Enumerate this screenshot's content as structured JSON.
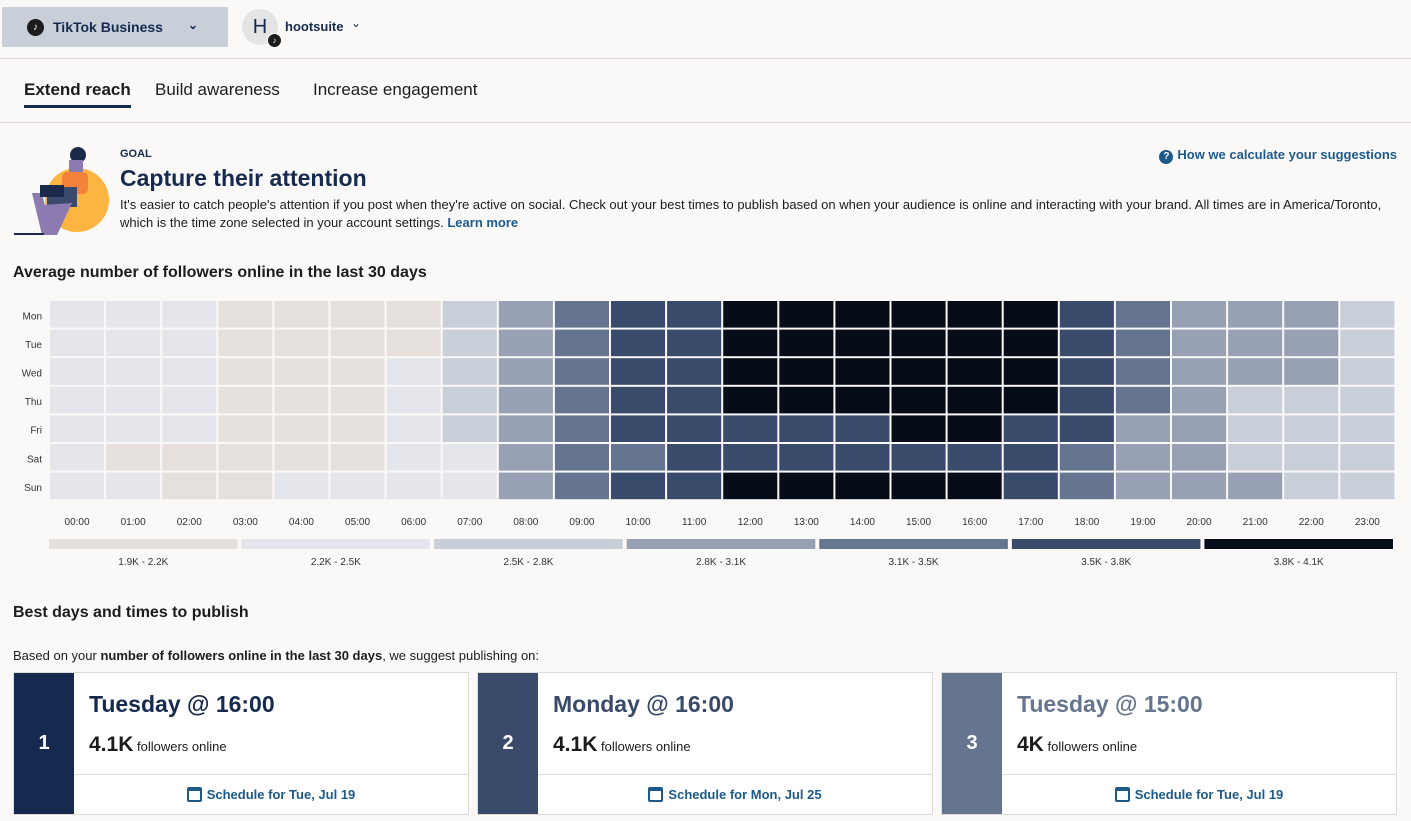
{
  "topbar": {
    "network": "TikTok Business",
    "profile_initial": "H",
    "profile": "hootsuite"
  },
  "tabs": [
    "Extend reach",
    "Build awareness",
    "Increase engagement"
  ],
  "goal": {
    "label": "GOAL",
    "title": "Capture their attention",
    "description": "It's easier to catch people's attention if you post when they're active on social. Check out your best times to publish based on when your audience is online and interacting with your brand. All times are in America/Toronto, which is the time zone selected in your account settings.",
    "learn_more": "Learn more",
    "help_link": "How we calculate your suggestions"
  },
  "heatmap_title": "Average number of followers online in the last 30 days",
  "chart_data": {
    "type": "heatmap",
    "title": "Average number of followers online in the last 30 days",
    "rows": [
      "Mon",
      "Tue",
      "Wed",
      "Thu",
      "Fri",
      "Sat",
      "Sun"
    ],
    "columns": [
      "00:00",
      "01:00",
      "02:00",
      "03:00",
      "04:00",
      "05:00",
      "06:00",
      "07:00",
      "08:00",
      "09:00",
      "10:00",
      "11:00",
      "12:00",
      "13:00",
      "14:00",
      "15:00",
      "16:00",
      "17:00",
      "18:00",
      "19:00",
      "20:00",
      "21:00",
      "22:00",
      "23:00"
    ],
    "bins": [
      {
        "label": "1.9K - 2.2K",
        "color": "#e5e0dc"
      },
      {
        "label": "2.2K - 2.5K",
        "color": "#e4e6eb"
      },
      {
        "label": "2.5K - 2.8K",
        "color": "#c9cfd9"
      },
      {
        "label": "2.8K - 3.1K",
        "color": "#97a1b3"
      },
      {
        "label": "3.1K - 3.5K",
        "color": "#66758f"
      },
      {
        "label": "3.5K - 3.8K",
        "color": "#3a4a6b"
      },
      {
        "label": "3.8K - 4.1K",
        "color": "#070d18"
      }
    ],
    "bin_index": [
      [
        1,
        1,
        1,
        0,
        0,
        0,
        0,
        2,
        3,
        4,
        5,
        5,
        6,
        6,
        6,
        6,
        6,
        6,
        5,
        4,
        3,
        3,
        3,
        2
      ],
      [
        1,
        1,
        1,
        0,
        0,
        0,
        0,
        2,
        3,
        4,
        5,
        5,
        6,
        6,
        6,
        6,
        6,
        6,
        5,
        4,
        3,
        3,
        3,
        2
      ],
      [
        1,
        1,
        1,
        0,
        0,
        0,
        1,
        2,
        3,
        4,
        5,
        5,
        6,
        6,
        6,
        6,
        6,
        6,
        5,
        4,
        3,
        3,
        3,
        2
      ],
      [
        1,
        1,
        1,
        0,
        0,
        0,
        1,
        2,
        3,
        4,
        5,
        5,
        6,
        6,
        6,
        6,
        6,
        6,
        5,
        4,
        3,
        2,
        2,
        2
      ],
      [
        1,
        1,
        1,
        0,
        0,
        0,
        1,
        2,
        3,
        4,
        5,
        5,
        5,
        5,
        5,
        6,
        6,
        5,
        5,
        3,
        3,
        2,
        2,
        2
      ],
      [
        1,
        0,
        0,
        0,
        0,
        0,
        1,
        1,
        3,
        4,
        4,
        5,
        5,
        5,
        5,
        5,
        5,
        5,
        4,
        3,
        3,
        2,
        2,
        2
      ],
      [
        1,
        1,
        0,
        0,
        1,
        1,
        1,
        1,
        3,
        4,
        5,
        5,
        6,
        6,
        6,
        6,
        6,
        5,
        4,
        3,
        3,
        3,
        2,
        2
      ]
    ],
    "legend": "bottom"
  },
  "best": {
    "title": "Best days and times to publish",
    "intro_pre": "Based on your ",
    "intro_bold": "number of followers online in the last 30 days",
    "intro_post": ", we suggest publishing on:",
    "cards": [
      {
        "rank": "1",
        "title": "Tuesday @ 16:00",
        "count": "4.1K",
        "count_label": "followers online",
        "schedule": "Schedule for Tue, Jul 19",
        "color": "#152a4e"
      },
      {
        "rank": "2",
        "title": "Monday @ 16:00",
        "count": "4.1K",
        "count_label": "followers online",
        "schedule": "Schedule for Mon, Jul 25",
        "color": "#3a4a6b"
      },
      {
        "rank": "3",
        "title": "Tuesday @ 15:00",
        "count": "4K",
        "count_label": "followers online",
        "schedule": "Schedule for Tue, Jul 19",
        "color": "#66758f"
      }
    ]
  }
}
